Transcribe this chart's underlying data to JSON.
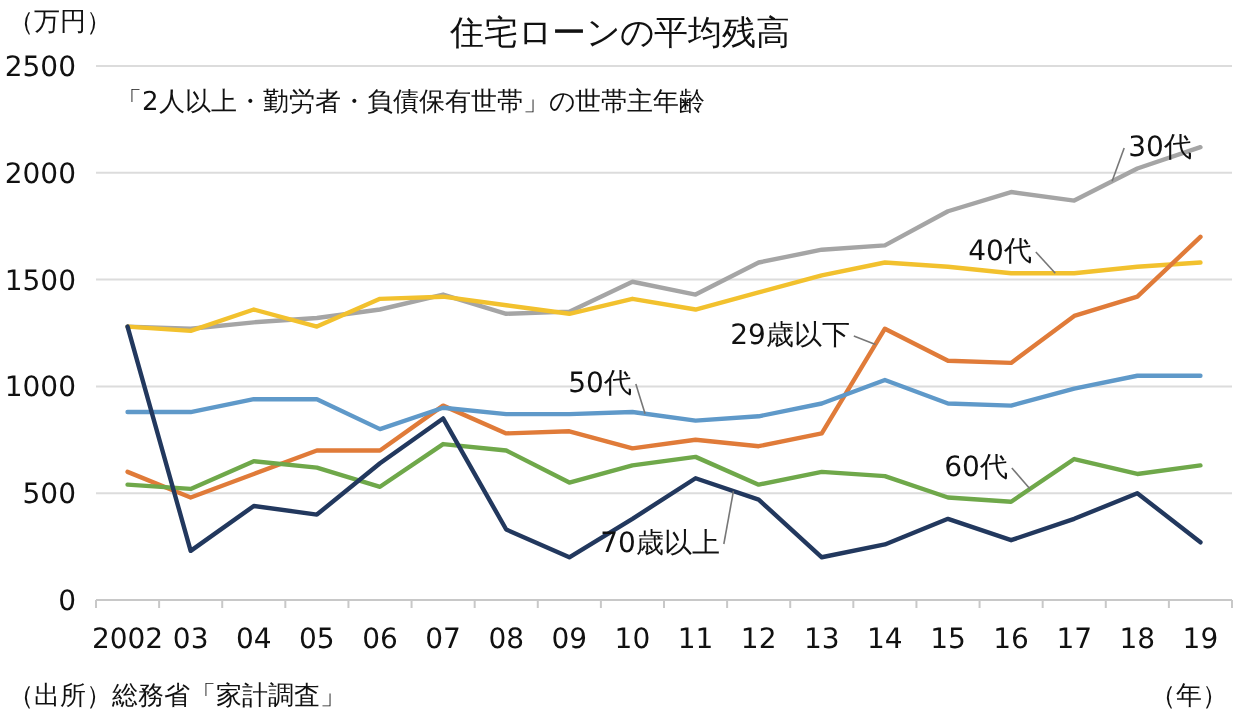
{
  "chart_data": {
    "type": "line",
    "title": "住宅ローンの平均残高",
    "subtitle": "「2人以上・勤労者・負債保有世帯」の世帯主年齢",
    "ylabel": "（万円）",
    "xlabel": "（年）",
    "annotations": [
      "（出所）総務省「家計調査」"
    ],
    "categories": [
      "2002",
      "03",
      "04",
      "05",
      "06",
      "07",
      "08",
      "09",
      "10",
      "11",
      "12",
      "13",
      "14",
      "15",
      "16",
      "17",
      "18",
      "19"
    ],
    "ylim": [
      0,
      2500
    ],
    "yticks": [
      0,
      500,
      1000,
      1500,
      2000,
      2500
    ],
    "grid": "y",
    "marker": "none",
    "line_style": "solid",
    "series": [
      {
        "name": "30代",
        "color": "#a5a5a5",
        "values": [
          1280,
          1270,
          1300,
          1320,
          1360,
          1430,
          1340,
          1350,
          1490,
          1430,
          1580,
          1640,
          1660,
          1820,
          1910,
          1870,
          2020,
          2120
        ]
      },
      {
        "name": "40代",
        "color": "#f2c12e",
        "values": [
          1280,
          1260,
          1360,
          1280,
          1410,
          1420,
          1380,
          1340,
          1410,
          1360,
          1440,
          1520,
          1580,
          1560,
          1530,
          1530,
          1560,
          1580
        ]
      },
      {
        "name": "29歳以下",
        "color": "#e07b39",
        "values": [
          600,
          480,
          590,
          700,
          700,
          910,
          780,
          790,
          710,
          750,
          720,
          780,
          1270,
          1120,
          1110,
          1330,
          1420,
          1700
        ]
      },
      {
        "name": "50代",
        "color": "#5f99c9",
        "values": [
          880,
          880,
          940,
          940,
          800,
          900,
          870,
          870,
          880,
          840,
          860,
          920,
          1030,
          920,
          910,
          990,
          1050,
          1050
        ]
      },
      {
        "name": "60代",
        "color": "#6fa84a",
        "values": [
          540,
          520,
          650,
          620,
          530,
          730,
          700,
          550,
          630,
          670,
          540,
          600,
          580,
          480,
          460,
          660,
          590,
          630
        ]
      },
      {
        "name": "70歳以上",
        "color": "#22385e",
        "values": [
          1280,
          230,
          440,
          400,
          640,
          850,
          330,
          200,
          380,
          570,
          470,
          200,
          260,
          380,
          280,
          380,
          500,
          270
        ]
      }
    ]
  }
}
